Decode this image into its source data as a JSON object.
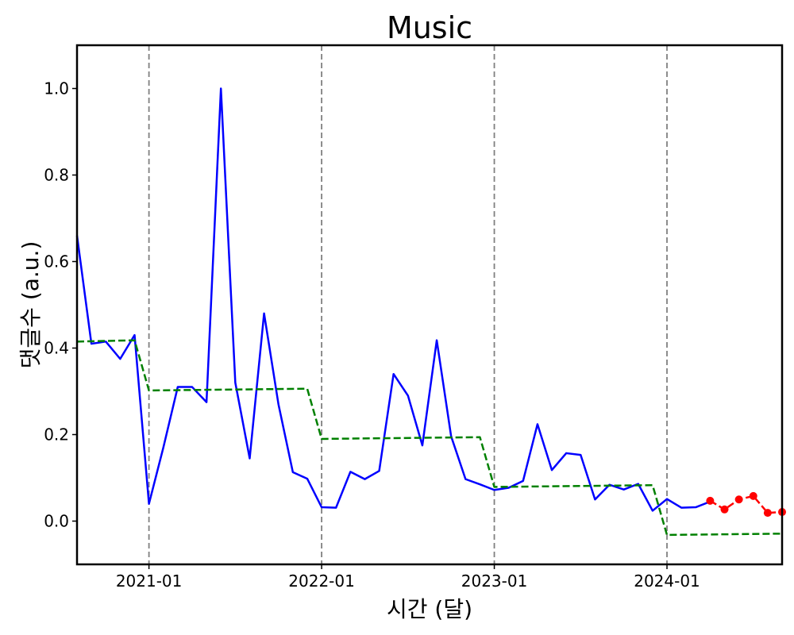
{
  "chart_data": {
    "type": "line",
    "title": "Music",
    "xlabel": "시간 (달)",
    "ylabel": "댓글수 (a.u.)",
    "x_ticks": [
      "2021-01",
      "2022-01",
      "2023-01",
      "2024-01"
    ],
    "y_ticks": [
      "0.0",
      "0.2",
      "0.4",
      "0.6",
      "0.8",
      "1.0"
    ],
    "xlim": [
      "2020-08",
      "2024-09"
    ],
    "ylim": [
      -0.1,
      1.1
    ],
    "vertical_lines": [
      "2021-01",
      "2022-01",
      "2023-01",
      "2024-01"
    ],
    "grid": false,
    "legend": "none",
    "series": [
      {
        "style": "solid",
        "color": "#0000ff",
        "points": [
          {
            "x": "2020-08",
            "y": 0.66
          },
          {
            "x": "2020-09",
            "y": 0.41
          },
          {
            "x": "2020-10",
            "y": 0.415
          },
          {
            "x": "2020-11",
            "y": 0.375
          },
          {
            "x": "2020-12",
            "y": 0.43
          },
          {
            "x": "2021-01",
            "y": 0.04
          },
          {
            "x": "2021-02",
            "y": 0.17
          },
          {
            "x": "2021-03",
            "y": 0.31
          },
          {
            "x": "2021-04",
            "y": 0.31
          },
          {
            "x": "2021-05",
            "y": 0.275
          },
          {
            "x": "2021-06",
            "y": 1.0
          },
          {
            "x": "2021-07",
            "y": 0.32
          },
          {
            "x": "2021-08",
            "y": 0.145
          },
          {
            "x": "2021-09",
            "y": 0.48
          },
          {
            "x": "2021-10",
            "y": 0.27
          },
          {
            "x": "2021-11",
            "y": 0.113
          },
          {
            "x": "2021-12",
            "y": 0.098
          },
          {
            "x": "2022-01",
            "y": 0.032
          },
          {
            "x": "2022-02",
            "y": 0.031
          },
          {
            "x": "2022-03",
            "y": 0.114
          },
          {
            "x": "2022-04",
            "y": 0.097
          },
          {
            "x": "2022-05",
            "y": 0.116
          },
          {
            "x": "2022-06",
            "y": 0.34
          },
          {
            "x": "2022-07",
            "y": 0.29
          },
          {
            "x": "2022-08",
            "y": 0.175
          },
          {
            "x": "2022-09",
            "y": 0.418
          },
          {
            "x": "2022-10",
            "y": 0.196
          },
          {
            "x": "2022-11",
            "y": 0.097
          },
          {
            "x": "2022-12",
            "y": 0.085
          },
          {
            "x": "2023-01",
            "y": 0.072
          },
          {
            "x": "2023-02",
            "y": 0.077
          },
          {
            "x": "2023-03",
            "y": 0.093
          },
          {
            "x": "2023-04",
            "y": 0.224
          },
          {
            "x": "2023-05",
            "y": 0.118
          },
          {
            "x": "2023-06",
            "y": 0.157
          },
          {
            "x": "2023-07",
            "y": 0.153
          },
          {
            "x": "2023-08",
            "y": 0.05
          },
          {
            "x": "2023-09",
            "y": 0.084
          },
          {
            "x": "2023-10",
            "y": 0.073
          },
          {
            "x": "2023-11",
            "y": 0.086
          },
          {
            "x": "2023-12",
            "y": 0.024
          },
          {
            "x": "2024-01",
            "y": 0.051
          },
          {
            "x": "2024-02",
            "y": 0.031
          },
          {
            "x": "2024-03",
            "y": 0.032
          },
          {
            "x": "2024-04",
            "y": 0.045
          }
        ]
      },
      {
        "style": "dashed",
        "color": "#008000",
        "points": [
          {
            "x": "2020-08",
            "y": 0.415
          },
          {
            "x": "2020-12",
            "y": 0.418
          },
          {
            "x": "2021-01",
            "y": 0.302
          },
          {
            "x": "2021-12",
            "y": 0.306
          },
          {
            "x": "2022-01",
            "y": 0.19
          },
          {
            "x": "2022-12",
            "y": 0.194
          },
          {
            "x": "2023-01",
            "y": 0.079
          },
          {
            "x": "2023-12",
            "y": 0.083
          },
          {
            "x": "2024-01",
            "y": -0.032
          },
          {
            "x": "2024-09",
            "y": -0.029
          }
        ]
      },
      {
        "style": "dashed",
        "color": "#ff0000",
        "markers": true,
        "points": [
          {
            "x": "2024-04",
            "y": 0.047
          },
          {
            "x": "2024-05",
            "y": 0.027
          },
          {
            "x": "2024-06",
            "y": 0.05
          },
          {
            "x": "2024-07",
            "y": 0.058
          },
          {
            "x": "2024-08",
            "y": 0.019
          },
          {
            "x": "2024-09",
            "y": 0.021
          }
        ]
      }
    ]
  }
}
